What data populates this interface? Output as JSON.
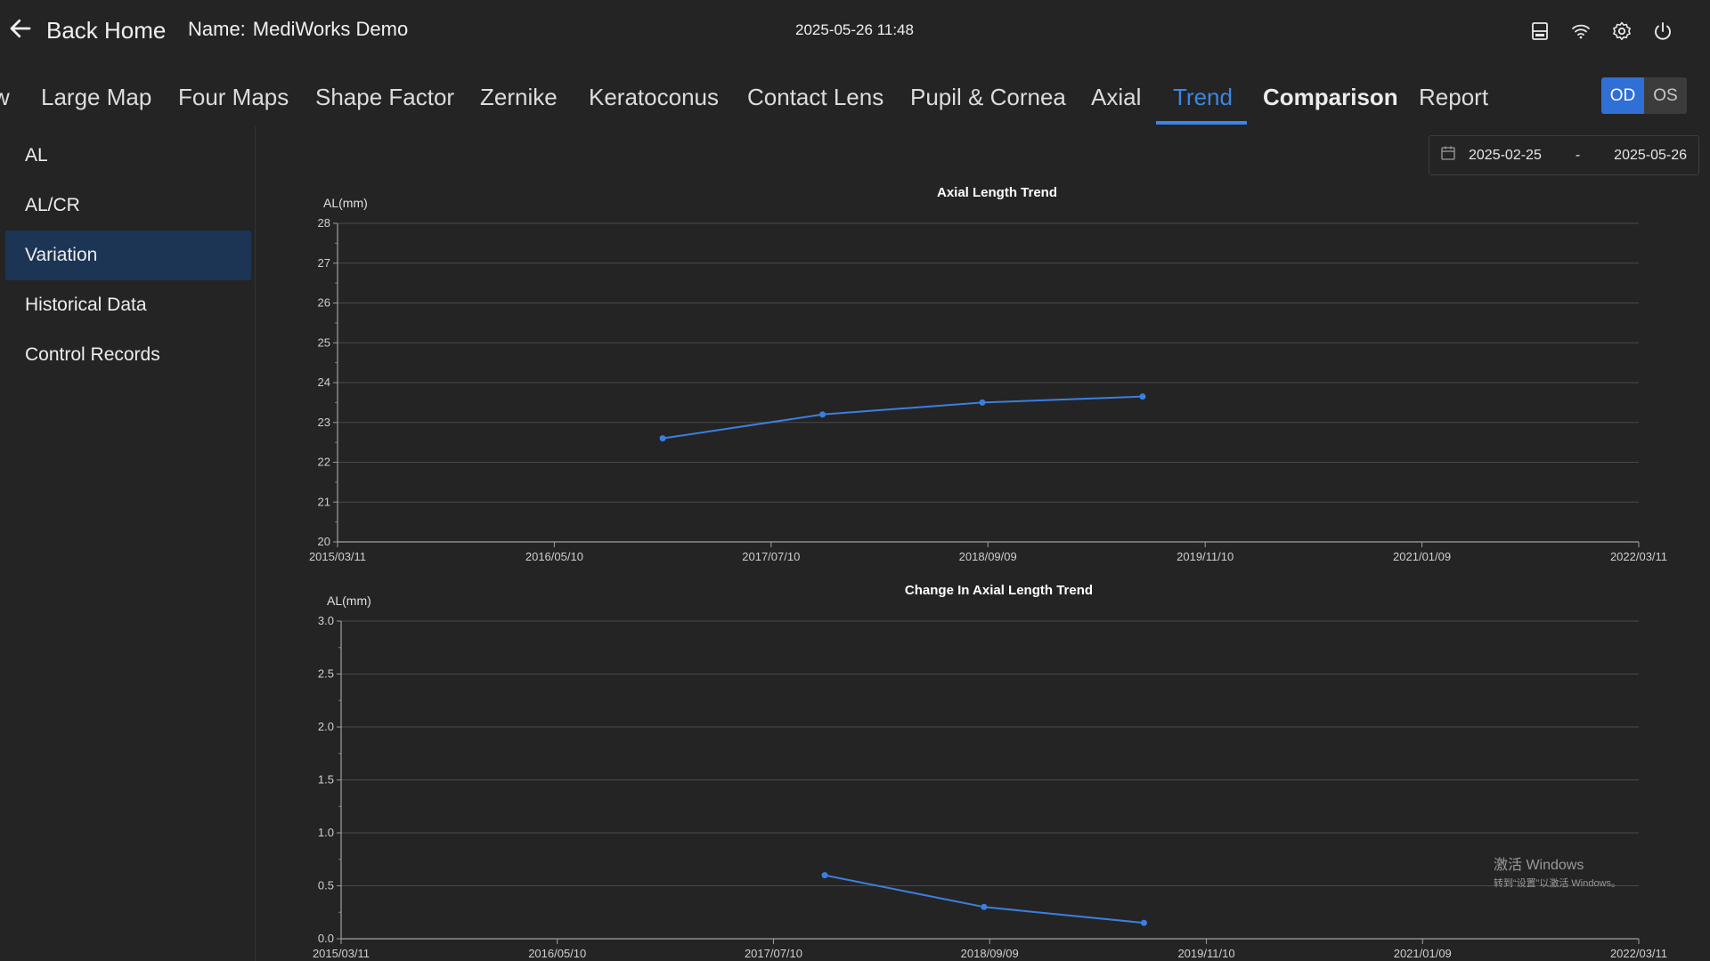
{
  "header": {
    "back_label": "Back Home",
    "name_label": "Name:",
    "name_value": "MediWorks Demo",
    "datetime": "2025-05-26 11:48",
    "icons": [
      "save-icon",
      "wifi-icon",
      "gear-icon",
      "power-icon"
    ]
  },
  "tabs": [
    {
      "label": "w"
    },
    {
      "label": "Large Map"
    },
    {
      "label": "Four Maps"
    },
    {
      "label": "Shape Factor"
    },
    {
      "label": "Zernike"
    },
    {
      "label": "Keratoconus"
    },
    {
      "label": "Contact Lens"
    },
    {
      "label": "Pupil & Cornea"
    },
    {
      "label": "Axial"
    },
    {
      "label": "Trend"
    },
    {
      "label": "Comparison"
    },
    {
      "label": "Report"
    }
  ],
  "active_tab": "Trend",
  "eye": {
    "od": "OD",
    "os": "OS",
    "selected": "OD"
  },
  "sidebar": {
    "items": [
      {
        "label": "AL"
      },
      {
        "label": "AL/CR"
      },
      {
        "label": "Variation"
      },
      {
        "label": "Historical Data"
      },
      {
        "label": "Control Records"
      }
    ],
    "active": "Variation"
  },
  "date_range": {
    "start": "2025-02-25",
    "separator": "-",
    "end": "2025-05-26"
  },
  "colors": {
    "accent": "#3a86e6",
    "line": "#3a7fe0",
    "grid": "#4a4a4a",
    "sidebar_active": "#1c3555"
  },
  "chart_data": [
    {
      "type": "line",
      "title": "Axial Length Trend",
      "ylabel": "AL(mm)",
      "ylim": [
        20,
        28
      ],
      "yticks": [
        "20",
        "21",
        "22",
        "23",
        "24",
        "25",
        "26",
        "27",
        "28"
      ],
      "xticks": [
        "2015/03/11",
        "2016/05/10",
        "2017/07/10",
        "2018/09/09",
        "2019/11/10",
        "2021/01/09",
        "2022/03/11"
      ],
      "xlim": [
        "2015/03/11",
        "2022/03/11"
      ],
      "grid": true,
      "series": [
        {
          "x": [
            "2016/12/09",
            "2017/10/19",
            "2018/08/29",
            "2019/07/10"
          ],
          "y": [
            22.6,
            23.2,
            23.5,
            23.65
          ]
        }
      ]
    },
    {
      "type": "line",
      "title": "Change In Axial Length Trend",
      "ylabel": "AL(mm)",
      "ylim": [
        0,
        3
      ],
      "yticks": [
        "0.0",
        "0.5",
        "1.0",
        "1.5",
        "2.0",
        "2.5",
        "3.0"
      ],
      "xticks": [
        "2015/03/11",
        "2016/05/10",
        "2017/07/10",
        "2018/09/09",
        "2019/11/10",
        "2021/01/09",
        "2022/03/11"
      ],
      "xlim": [
        "2015/03/11",
        "2022/03/11"
      ],
      "grid": true,
      "series": [
        {
          "x": [
            "2017/10/19",
            "2018/08/29",
            "2019/07/10"
          ],
          "y": [
            0.6,
            0.3,
            0.15
          ]
        }
      ]
    }
  ],
  "watermark": {
    "line1": "激活 Windows",
    "line2": "转到“设置”以激活 Windows。"
  }
}
